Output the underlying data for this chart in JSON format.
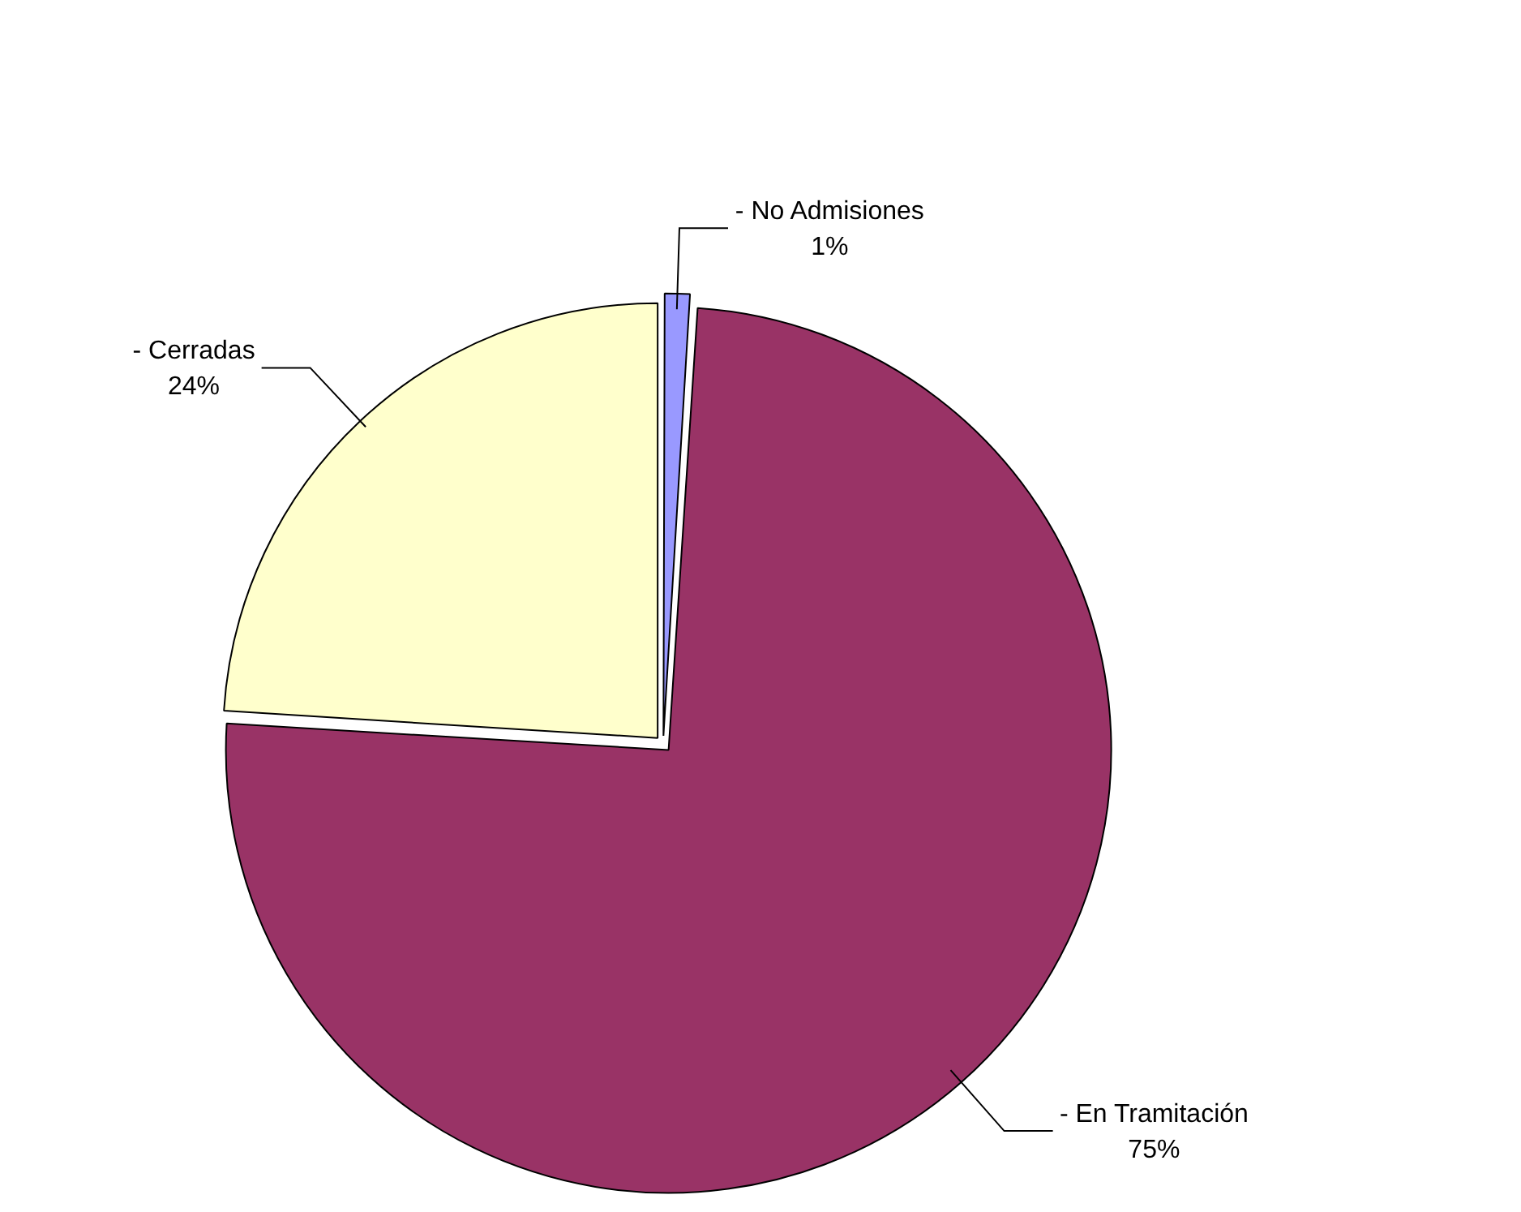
{
  "chart_data": {
    "type": "pie",
    "categories": [
      "- No Admisiones",
      "- En Tramitación",
      "- Cerradas"
    ],
    "values": [
      1,
      75,
      24
    ],
    "colors": [
      "#9999ff",
      "#993366",
      "#ffffcc"
    ],
    "value_labels": [
      "1%",
      "75%",
      "24%"
    ],
    "legend": false
  }
}
